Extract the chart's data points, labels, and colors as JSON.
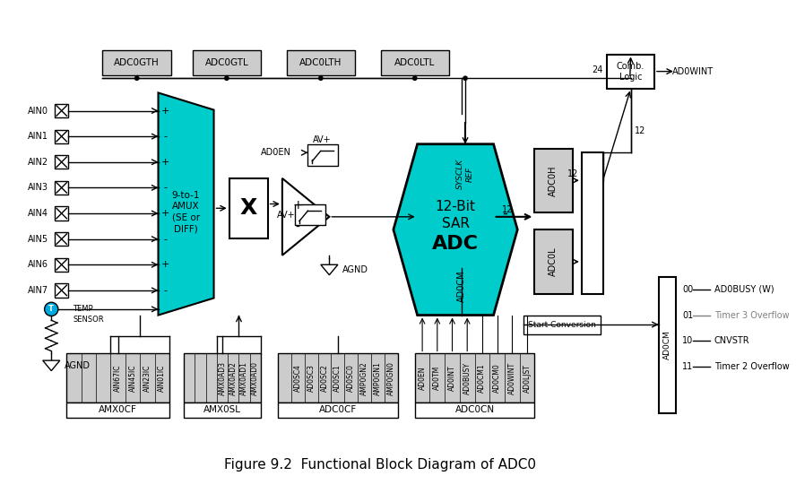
{
  "title": "Figure 9.2  Functional Block Diagram of ADC0",
  "background_color": "#ffffff",
  "cyan_color": "#00CCCC",
  "gray_color": "#AAAAAA",
  "light_gray": "#CCCCCC",
  "dark_gray": "#888888",
  "black": "#000000",
  "ain_labels": [
    "AIN0",
    "AIN1",
    "AIN2",
    "AIN3",
    "AIN4",
    "AIN5",
    "AIN6",
    "AIN7"
  ],
  "ain_signs": [
    "+",
    "-",
    "+",
    "-",
    "+",
    "-",
    "+",
    "-"
  ],
  "top_regs": [
    "ADC0GTH",
    "ADC0GTL",
    "ADC0LTH",
    "ADC0LTL"
  ],
  "amx0cf_labels": [
    "AIN67IC",
    "AIN45IC",
    "AIN23IC",
    "AIN01IC"
  ],
  "amx0sl_labels": [
    "AMX0AD3",
    "AMX0AD2",
    "AMX0AD1",
    "AMX0AD0"
  ],
  "adc0cf_labels": [
    "AD0SC4",
    "AD0SC3",
    "AD0SC2",
    "AD0SC1",
    "AD0SC0",
    "AMP0GN2",
    "AMP0GN1",
    "AMP0GN0"
  ],
  "adc0cn_labels": [
    "AD0EN",
    "AD0TM",
    "AD0INT",
    "AD0BUSY",
    "AD0CM1",
    "AD0CM0",
    "AD0WINT",
    "AD0LJST"
  ],
  "right_signals": [
    "AD0BUSY (W)",
    "Timer 3 Overflow",
    "CNVSTR",
    "Timer 2 Overflow"
  ],
  "right_codes": [
    "00",
    "01",
    "10",
    "11"
  ]
}
